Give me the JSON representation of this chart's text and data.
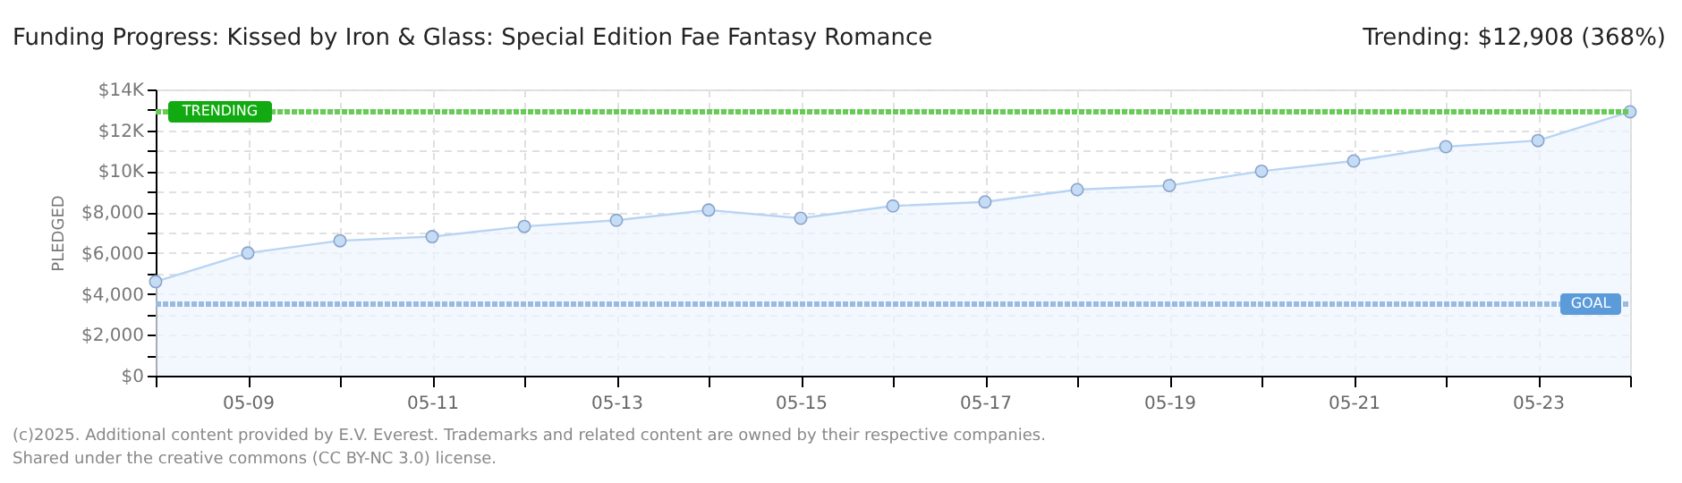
{
  "chart_data": {
    "type": "area",
    "title": "Funding Progress: Kissed by Iron & Glass: Special Edition Fae Fantasy Romance",
    "ylabel": "PLEDGED",
    "categories": [
      null,
      "05-09",
      null,
      "05-11",
      null,
      "05-13",
      null,
      "05-15",
      null,
      "05-17",
      null,
      "05-19",
      null,
      "05-21",
      null,
      "05-23",
      null
    ],
    "series": [
      {
        "color": "#b8d4f4",
        "values": [
          4600,
          6000,
          6600,
          6800,
          7300,
          7600,
          8100,
          7700,
          8300,
          8500,
          9100,
          9300,
          10000,
          10500,
          11200,
          11500,
          12908
        ]
      }
    ],
    "ylim": [
      0,
      14000
    ],
    "yticks": [
      {
        "value": 0,
        "label": "$0"
      },
      {
        "value": 1000,
        "label": null
      },
      {
        "value": 2000,
        "label": "$2,000"
      },
      {
        "value": 3000,
        "label": null
      },
      {
        "value": 4000,
        "label": "$4,000"
      },
      {
        "value": 5000,
        "label": null
      },
      {
        "value": 6000,
        "label": "$6,000"
      },
      {
        "value": 7000,
        "label": null
      },
      {
        "value": 8000,
        "label": "$8,000"
      },
      {
        "value": 9000,
        "label": null
      },
      {
        "value": 10000,
        "label": "$10K"
      },
      {
        "value": 11000,
        "label": null
      },
      {
        "value": 12000,
        "label": "$12K"
      },
      {
        "value": 13000,
        "label": null
      },
      {
        "value": 14000,
        "label": "$14K"
      }
    ],
    "ref_lines": [
      {
        "axis": "y",
        "value": 12908,
        "label": "TRENDING",
        "color": "#66cc55",
        "line_style": "dotted"
      },
      {
        "axis": "y",
        "value": 3500,
        "label": "GOAL",
        "color": "#99bbe0",
        "line_style": "dotted"
      }
    ],
    "annotations": [
      "Trending:  $12,908 (368%)",
      "(c)2025. Additional content provided by E.V. Everest. Trademarks and related content are owned by their respective companies.",
      "Shared under the creative commons (CC BY-NC 3.0) license."
    ],
    "grid": true,
    "marker": "circle"
  }
}
